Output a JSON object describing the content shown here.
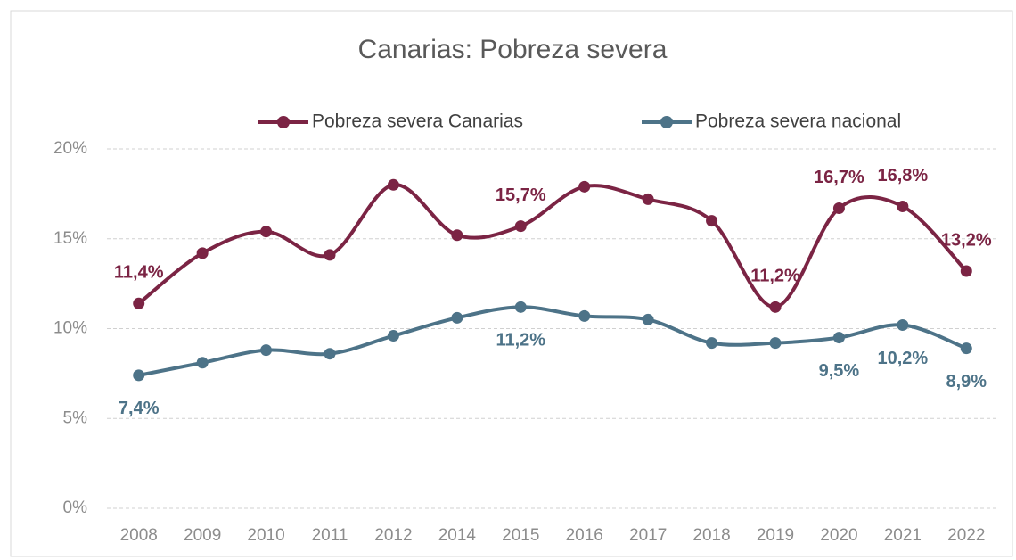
{
  "chart_data": {
    "type": "line",
    "title": "Canarias: Pobreza severa",
    "categories": [
      "2008",
      "2009",
      "2010",
      "2011",
      "2012",
      "2014",
      "2015",
      "2016",
      "2017",
      "2018",
      "2019",
      "2020",
      "2021",
      "2022"
    ],
    "series": [
      {
        "name": "Pobreza severa Canarias",
        "color": "#7b2444",
        "values": [
          11.4,
          14.2,
          15.4,
          14.1,
          18.0,
          15.2,
          15.7,
          17.9,
          17.2,
          16.0,
          11.2,
          16.7,
          16.8,
          13.2
        ],
        "value_labels": [
          "11,4%",
          null,
          null,
          null,
          null,
          null,
          "15,7%",
          null,
          null,
          null,
          "11,2%",
          "16,7%",
          "16,8%",
          "13,2%"
        ]
      },
      {
        "name": "Pobreza severa nacional",
        "color": "#4d7388",
        "values": [
          7.4,
          8.1,
          8.8,
          8.6,
          9.6,
          10.6,
          11.2,
          10.7,
          10.5,
          9.2,
          9.2,
          9.5,
          10.2,
          8.9
        ],
        "value_labels": [
          "7,4%",
          null,
          null,
          null,
          null,
          null,
          "11,2%",
          null,
          null,
          null,
          null,
          "9,5%",
          "10,2%",
          "8,9%"
        ]
      }
    ],
    "ylim": [
      0,
      20
    ],
    "yticks": [
      {
        "value": 0,
        "label": "0%"
      },
      {
        "value": 5,
        "label": "5%"
      },
      {
        "value": 10,
        "label": "10%"
      },
      {
        "value": 15,
        "label": "15%"
      },
      {
        "value": 20,
        "label": "20%"
      }
    ],
    "grid": true,
    "legend": "top"
  }
}
